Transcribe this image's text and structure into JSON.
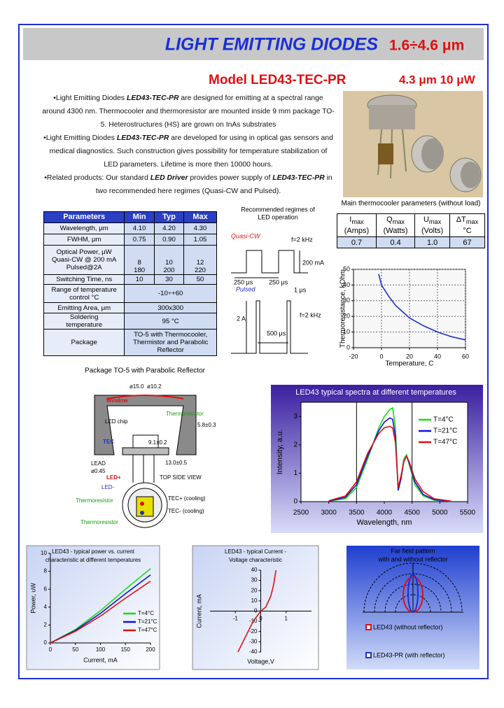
{
  "header": {
    "title": "LIGHT EMITTING DIODES",
    "range": "1.6÷4.6 μm"
  },
  "model": {
    "name": "Model  LED43-TEC-PR",
    "spec": "4.3 μm  10 μW"
  },
  "paragraphs": [
    {
      "runs": [
        {
          "text": "•Light Emitting Diodes "
        },
        {
          "text": "LED43-TEC-PR",
          "style": "bold-italic"
        },
        {
          "text": " are designed for emitting at a spectral range around 4300 nm. Thermocooler and thermoresistor are mounted inside 9 mm package TO-5. Heterostructures (HS) are grown on InAs substrates"
        }
      ]
    },
    {
      "runs": [
        {
          "text": "•Light Emitting Diodes "
        },
        {
          "text": "LED43-TEC-PR",
          "style": "bold-italic"
        },
        {
          "text": " are developed for using in optical gas sensors and medical diagnostics. Such construction gives possibility for temperature stabilization of LED parameters.  Lifetime is more then 10000 hours."
        }
      ]
    },
    {
      "runs": [
        {
          "text": "•Related products: Our standard "
        },
        {
          "text": "LED Driver",
          "style": "bold-italic"
        },
        {
          "text": " provides power supply of "
        },
        {
          "text": "LED43-TEC-PR",
          "style": "bold-italic"
        },
        {
          "text": " in two recommended here regimes (Quasi-CW and Pulsed)."
        }
      ]
    }
  ],
  "parameters_table": {
    "header": [
      "Parameters",
      "Min",
      "Typ",
      "Max"
    ],
    "rows": [
      {
        "name": [
          "Wavelength, μm"
        ],
        "cells": [
          [
            "4.10"
          ],
          [
            "4.20"
          ],
          [
            "4.30"
          ]
        ]
      },
      {
        "name": [
          "FWHM, μm"
        ],
        "cells": [
          [
            "0.75"
          ],
          [
            "0.90"
          ],
          [
            "1.05"
          ]
        ]
      },
      {
        "name": [
          "Optical Power, μW",
          "Quasi-CW @ 200 mA",
          "Pulsed@2A"
        ],
        "cells": [
          [
            "8",
            "180"
          ],
          [
            "10",
            "200"
          ],
          [
            "12",
            "220"
          ]
        ]
      },
      {
        "name": [
          "Switching Time, ns"
        ],
        "cells": [
          [
            "10"
          ],
          [
            "30"
          ],
          [
            "50"
          ]
        ]
      },
      {
        "name": [
          "Range of temperature",
          "control °C"
        ],
        "cells": [
          [
            "-10÷+60"
          ]
        ]
      },
      {
        "name": [
          "Emitting Area, μm"
        ],
        "cells": [
          [
            "300x300"
          ]
        ]
      },
      {
        "name": [
          "Soldering",
          "temperature"
        ],
        "cells": [
          [
            "95 °C"
          ]
        ]
      },
      {
        "name": [
          "Package"
        ],
        "cells": [
          [
            "TO-5 with Thermocooler,",
            "Thermistor and Parabolic",
            "Reflector"
          ]
        ]
      }
    ]
  },
  "regimes": {
    "title": [
      "Recommended regimes of",
      "LED operation"
    ],
    "quasi_cw": "Quasi-CW",
    "quasi_freq": "f=2 kHz",
    "quasi_current": "200 mA",
    "quasi_on": "250 μs",
    "quasi_off": "250 μs",
    "pulsed": "Pulsed",
    "pulse_width": "1 μs",
    "pulse_current": "2 A",
    "pulse_freq": "f=2 kHz",
    "pulse_period": "500 μs"
  },
  "thermocooler": {
    "title": "Main thermocooler parameters (without load)",
    "header": [
      {
        "sym": "I",
        "sub": "max",
        "unit": "(Amps)"
      },
      {
        "sym": "Q",
        "sub": "max",
        "unit": "(Watts)"
      },
      {
        "sym": "U",
        "sub": "max",
        "unit": "(Volts)"
      },
      {
        "sym": "ΔT",
        "sub": "max",
        "unit": "°C"
      }
    ],
    "row": [
      "0.7",
      "0.4",
      "1.0",
      "67"
    ]
  },
  "thermistor_chart": {
    "type": "line",
    "xlabel": "Temperature, C",
    "ylabel": "Thermoresistance, kOhm",
    "x": [
      -2,
      0,
      5,
      10,
      15,
      20,
      30,
      40,
      50,
      60
    ],
    "series": [
      {
        "color": "#1f2fd0",
        "values": [
          47,
          40,
          33,
          27,
          23,
          19,
          14,
          10,
          7,
          5
        ]
      }
    ],
    "xlim": [
      -20,
      60
    ],
    "ylim": [
      0,
      50
    ],
    "xticks": [
      -20,
      0,
      20,
      40,
      60
    ],
    "yticks": [
      0,
      10,
      20,
      30,
      40,
      50
    ],
    "grid": true
  },
  "package": {
    "title": "Package TO-5 with Parabolic Reflector",
    "outer_diameter": "ø15.0",
    "inner_diameter": "ø10.2",
    "window": "Window",
    "thermoresistor_top": "Thermoresistor",
    "led_chip": "LED chip",
    "height": "5.8±0.3",
    "tec": "TEC",
    "base": "9.1±0.2",
    "lead": "LEAD",
    "lead_diameter": "ø0.45",
    "led_plus": "LED+",
    "lead_length": "13.0±0.5",
    "top_view": "TOP SIDE VIEW",
    "led_minus": "LED-",
    "thermoresistor_1": "Thermoresistor",
    "tec_plus": "TEC+ (cooling)",
    "tec_minus": "TEC- (cooling)",
    "thermoresistor_2": "Thermoresistor"
  },
  "spectra_chart": {
    "type": "line",
    "title": "LED43 typical spectra at different temperatures",
    "xlabel": "Wavelength, nm",
    "ylabel": "Intensity, a.u.",
    "x": [
      3000,
      3300,
      3500,
      3700,
      3900,
      4000,
      4100,
      4150,
      4200,
      4250,
      4300,
      4350,
      4400,
      4450,
      4550,
      4700,
      4900,
      5200
    ],
    "series": [
      {
        "name": "T=4°C",
        "color": "#10e010",
        "values": [
          0.02,
          0.1,
          0.5,
          1.5,
          2.6,
          3.0,
          3.25,
          3.3,
          2.6,
          0.4,
          0.8,
          1.5,
          1.65,
          1.3,
          0.6,
          0.2,
          0.05,
          0.01
        ]
      },
      {
        "name": "T=21°C",
        "color": "#1010e0",
        "values": [
          0.02,
          0.15,
          0.6,
          1.6,
          2.5,
          2.8,
          2.95,
          2.9,
          2.3,
          0.4,
          0.8,
          1.4,
          1.6,
          1.35,
          0.7,
          0.25,
          0.07,
          0.01
        ]
      },
      {
        "name": "T=47°C",
        "color": "#e01010",
        "values": [
          0.03,
          0.2,
          0.7,
          1.7,
          2.4,
          2.6,
          2.65,
          2.6,
          2.1,
          0.5,
          0.9,
          1.4,
          1.6,
          1.4,
          0.8,
          0.35,
          0.1,
          0.02
        ]
      }
    ],
    "reference_lines": [
      3500,
      4500
    ],
    "xlim": [
      2500,
      5500
    ],
    "ylim": [
      0,
      3.5
    ],
    "xticks": [
      2500,
      3000,
      3500,
      4000,
      4500,
      5000,
      5500
    ],
    "yticks": [
      0,
      1,
      2,
      3
    ],
    "grid": false
  },
  "power_chart": {
    "type": "line",
    "title": [
      "LED43 - typical power vs. current",
      "characteristic at different temperatures"
    ],
    "xlabel": "Current, mA",
    "ylabel": "Power, uW",
    "x": [
      0,
      50,
      100,
      150,
      200
    ],
    "series": [
      {
        "name": "T=4°C",
        "color": "#10e010",
        "values": [
          0,
          1.5,
          3.6,
          6.0,
          8.3
        ]
      },
      {
        "name": "T=21°C",
        "color": "#1010e0",
        "values": [
          0,
          1.4,
          3.3,
          5.5,
          7.6
        ]
      },
      {
        "name": "T=47°C",
        "color": "#e01010",
        "values": [
          0,
          1.3,
          3.0,
          5.0,
          6.9
        ]
      }
    ],
    "xlim": [
      0,
      200
    ],
    "ylim": [
      0,
      10
    ],
    "xticks": [
      0,
      50,
      100,
      150,
      200
    ],
    "yticks": [
      0,
      2,
      4,
      6,
      8,
      10
    ],
    "grid": false
  },
  "iv_chart": {
    "type": "line",
    "title": [
      "LED43 - typical Current -",
      "Voltage characteristic"
    ],
    "xlabel": "Voltage,V",
    "ylabel": "Current, mA",
    "x": [
      -0.9,
      -0.6,
      -0.3,
      0,
      0.2,
      0.4,
      0.5,
      0.6
    ],
    "series": [
      {
        "color": "#e01010",
        "values": [
          -40,
          -25,
          -10,
          0,
          4,
          15,
          25,
          40
        ]
      }
    ],
    "xlim": [
      -2,
      2
    ],
    "ylim": [
      -40,
      40
    ],
    "xticks": [
      -1,
      0,
      1
    ],
    "yticks": [
      -40,
      -30,
      -20,
      -10,
      0,
      10,
      20,
      30,
      40
    ],
    "grid": false
  },
  "far_field": {
    "title": [
      "Far field pattern",
      "with and without reflector"
    ],
    "legend": [
      "LED43 (without reflector)",
      "LED43-PR (with reflector)"
    ]
  }
}
